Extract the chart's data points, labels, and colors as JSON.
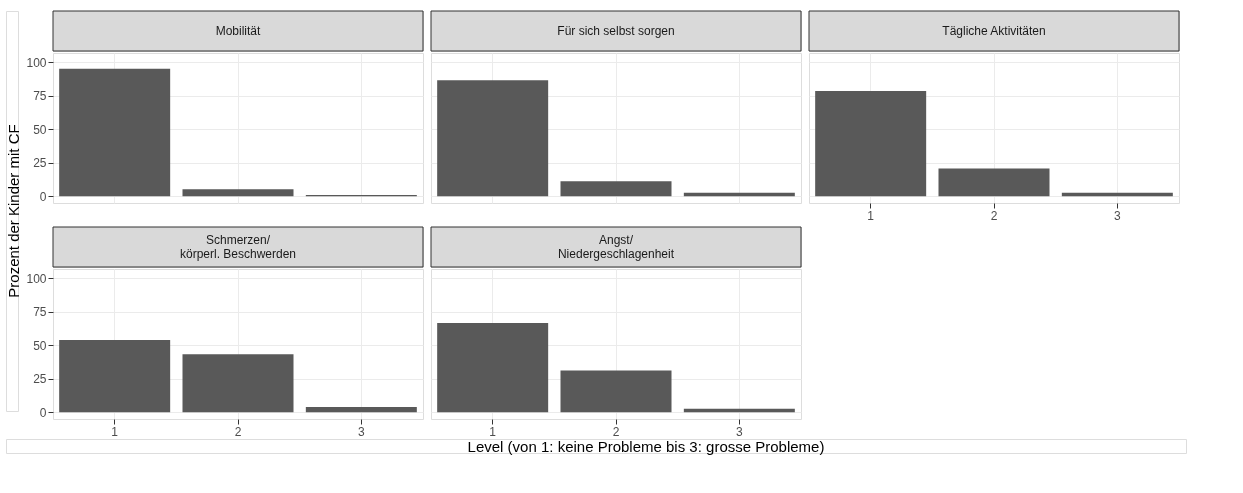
{
  "chart_data": [
    {
      "type": "bar",
      "title": "Mobilität",
      "categories": [
        "1",
        "2",
        "3"
      ],
      "values": [
        95.3,
        5.3,
        1
      ],
      "color": "#595959",
      "ylim": [
        -5,
        107
      ],
      "yticks": [
        0,
        25,
        50,
        75,
        100
      ],
      "grid": true,
      "tick_labels": "y",
      "ylabel": "Prozent der Kinder mit CF"
    },
    {
      "type": "bar",
      "title": "Für sich selbst sorgen",
      "categories": [
        "1",
        "2",
        "3"
      ],
      "values": [
        86.7,
        11.3,
        2.7
      ],
      "color": "#595959",
      "ylim": [
        -5,
        107
      ],
      "yticks": [
        0,
        25,
        50,
        75,
        100
      ],
      "grid": true,
      "tick_labels": false
    },
    {
      "type": "bar",
      "title": "Tägliche Aktivitäten",
      "categories": [
        "1",
        "2",
        "3"
      ],
      "values": [
        78.7,
        20.7,
        2.7
      ],
      "color": "#595959",
      "ylim": [
        -5,
        107
      ],
      "yticks": [
        0,
        25,
        50,
        75,
        100
      ],
      "grid": true,
      "tick_labels": "x"
    },
    {
      "type": "bar",
      "title": "Schmerzen/\nkörperl. Beschwerden",
      "categories": [
        "1",
        "2",
        "3"
      ],
      "values": [
        54,
        43.3,
        4
      ],
      "color": "#595959",
      "ylim": [
        -5,
        107
      ],
      "yticks": [
        0,
        25,
        50,
        75,
        100
      ],
      "grid": true
    },
    {
      "type": "bar",
      "title": "Angst/\nNiedergeschlagenheit",
      "categories": [
        "1",
        "2",
        "3"
      ],
      "values": [
        66.7,
        31.3,
        2.7
      ],
      "color": "#595959",
      "ylim": [
        -5,
        107
      ],
      "yticks": [
        0,
        25,
        50,
        75,
        100
      ],
      "grid": true,
      "tick_labels": "x",
      "xlabel": "Level (von 1: keine Probleme bis 3: grosse Probleme)"
    }
  ]
}
